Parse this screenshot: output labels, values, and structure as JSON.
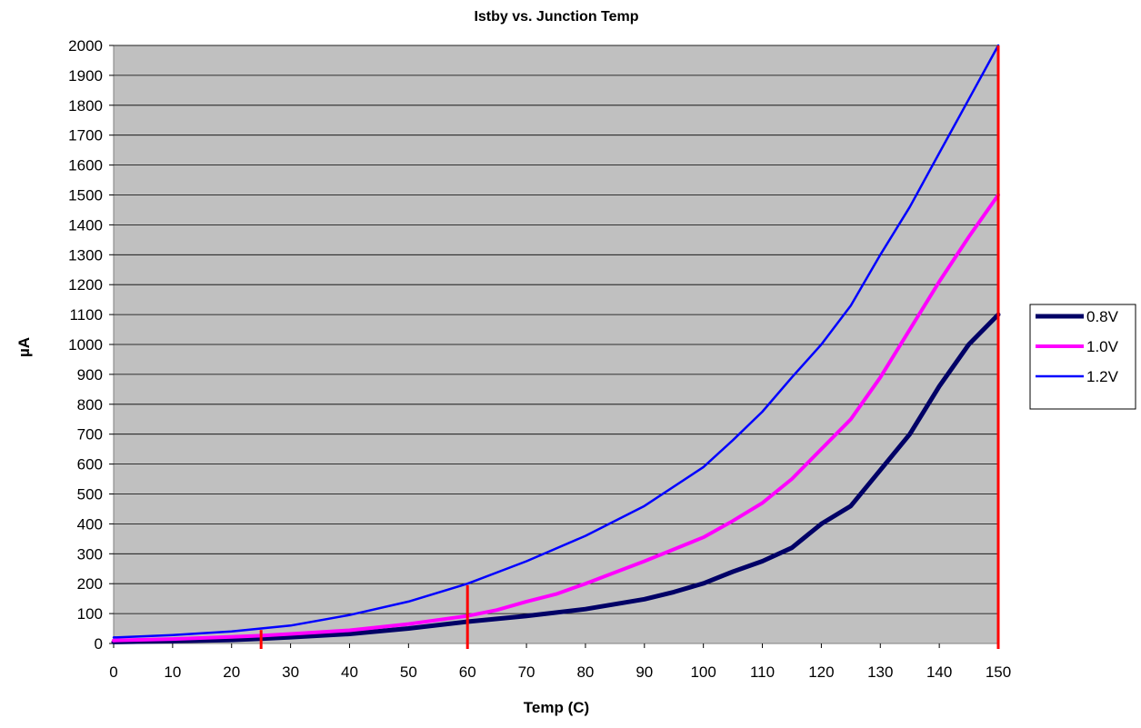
{
  "chart_data": {
    "type": "line",
    "title": "Istby vs. Junction Temp",
    "xlabel": "Temp (C)",
    "ylabel": "µA",
    "xlim": [
      0,
      150
    ],
    "ylim": [
      0,
      2000
    ],
    "x_ticks": [
      0,
      10,
      20,
      30,
      40,
      50,
      60,
      70,
      80,
      90,
      100,
      110,
      120,
      130,
      140,
      150
    ],
    "y_ticks": [
      0,
      100,
      200,
      300,
      400,
      500,
      600,
      700,
      800,
      900,
      1000,
      1100,
      1200,
      1300,
      1400,
      1500,
      1600,
      1700,
      1800,
      1900,
      2000
    ],
    "plot_background": "#c0c0c0",
    "grid": "horizontal",
    "legend_position": "right",
    "series": [
      {
        "name": "0.8V",
        "color": "#000066",
        "points": [
          [
            0,
            5
          ],
          [
            10,
            8
          ],
          [
            20,
            12
          ],
          [
            25,
            16
          ],
          [
            30,
            21
          ],
          [
            40,
            32
          ],
          [
            50,
            50
          ],
          [
            60,
            73
          ],
          [
            70,
            92
          ],
          [
            80,
            115
          ],
          [
            90,
            148
          ],
          [
            95,
            172
          ],
          [
            100,
            201
          ],
          [
            105,
            240
          ],
          [
            110,
            275
          ],
          [
            115,
            320
          ],
          [
            120,
            400
          ],
          [
            125,
            460
          ],
          [
            130,
            580
          ],
          [
            135,
            700
          ],
          [
            140,
            860
          ],
          [
            145,
            1000
          ],
          [
            150,
            1100
          ]
        ]
      },
      {
        "name": "1.0V",
        "color": "#ff00ff",
        "points": [
          [
            0,
            10
          ],
          [
            10,
            15
          ],
          [
            20,
            22
          ],
          [
            25,
            26
          ],
          [
            30,
            32
          ],
          [
            40,
            44
          ],
          [
            50,
            65
          ],
          [
            60,
            92
          ],
          [
            65,
            112
          ],
          [
            70,
            140
          ],
          [
            75,
            165
          ],
          [
            80,
            200
          ],
          [
            90,
            275
          ],
          [
            100,
            355
          ],
          [
            105,
            410
          ],
          [
            110,
            470
          ],
          [
            115,
            550
          ],
          [
            120,
            650
          ],
          [
            125,
            750
          ],
          [
            130,
            890
          ],
          [
            135,
            1050
          ],
          [
            140,
            1210
          ],
          [
            145,
            1360
          ],
          [
            150,
            1500
          ]
        ]
      },
      {
        "name": "1.2V",
        "color": "#0000ff",
        "points": [
          [
            0,
            20
          ],
          [
            10,
            28
          ],
          [
            20,
            40
          ],
          [
            25,
            50
          ],
          [
            30,
            60
          ],
          [
            40,
            95
          ],
          [
            50,
            140
          ],
          [
            60,
            200
          ],
          [
            70,
            275
          ],
          [
            80,
            360
          ],
          [
            90,
            460
          ],
          [
            100,
            590
          ],
          [
            105,
            680
          ],
          [
            110,
            775
          ],
          [
            115,
            890
          ],
          [
            120,
            1000
          ],
          [
            125,
            1130
          ],
          [
            130,
            1300
          ],
          [
            135,
            1460
          ],
          [
            140,
            1640
          ],
          [
            145,
            1820
          ],
          [
            150,
            2000
          ]
        ]
      }
    ],
    "markers": [
      {
        "x": 25,
        "y_top": 45,
        "color": "#ff0000"
      },
      {
        "x": 60,
        "y_top": 195,
        "color": "#ff0000"
      },
      {
        "x": 150,
        "y_top": 2000,
        "color": "#ff0000"
      }
    ]
  }
}
